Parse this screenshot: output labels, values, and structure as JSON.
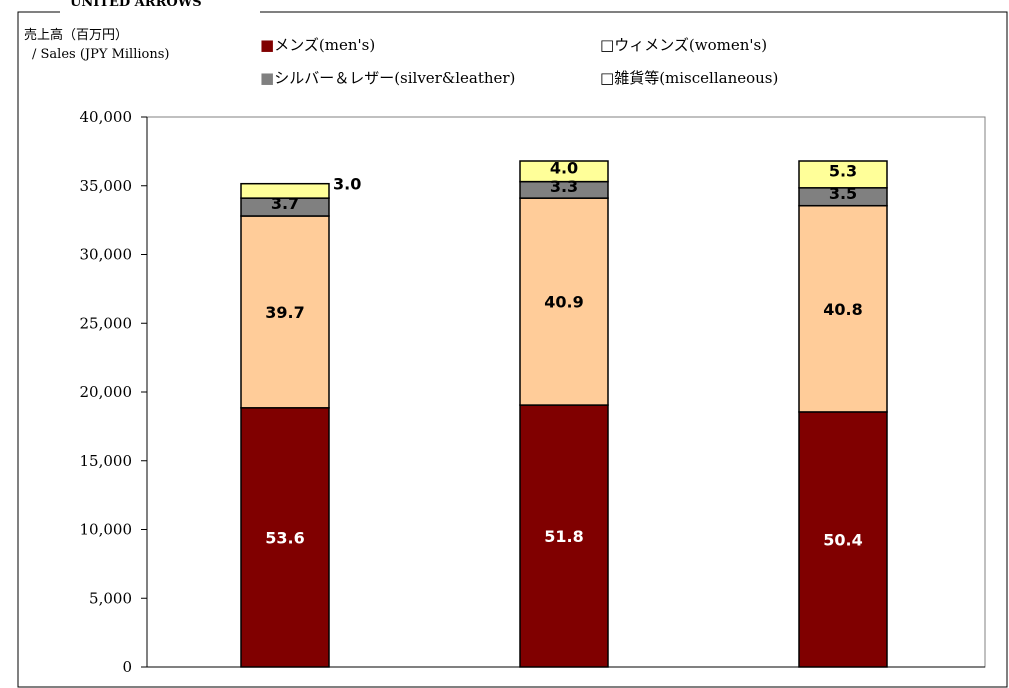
{
  "header": {
    "partial_title": "UNITED ARROWS"
  },
  "chart_data": {
    "type": "bar",
    "stacked": true,
    "ylabel_line1": "売上高（百万円）",
    "ylabel_line2": "/ Sales (JPY Millions)",
    "ylim": [
      0,
      40000
    ],
    "yticks": [
      0,
      5000,
      10000,
      15000,
      20000,
      25000,
      30000,
      35000,
      40000
    ],
    "ytick_labels": [
      "0",
      "5,000",
      "10,000",
      "15,000",
      "20,000",
      "25,000",
      "30,000",
      "35,000",
      "40,000"
    ],
    "categories": [
      "",
      "",
      ""
    ],
    "grid": false,
    "legend_position": "top",
    "series": [
      {
        "name": "■メンズ(men's)",
        "color": "#800000",
        "label_color": "#ffffff",
        "values": [
          18850,
          19050,
          18550
        ],
        "labels": [
          "53.6",
          "51.8",
          "50.4"
        ]
      },
      {
        "name": "□ウィメンズ(women's)",
        "color": "#FFCC99",
        "label_color": "#000000",
        "values": [
          13950,
          15050,
          15000
        ],
        "labels": [
          "39.7",
          "40.9",
          "40.8"
        ]
      },
      {
        "name": "■シルバー＆レザー(silver&leather)",
        "color": "#808080",
        "label_color": "#000000",
        "values": [
          1300,
          1200,
          1300
        ],
        "labels": [
          "3.7",
          "3.3",
          "3.5"
        ]
      },
      {
        "name": "□雑貨等(miscellaneous)",
        "color": "#FFFF99",
        "label_color": "#000000",
        "values": [
          1050,
          1500,
          1950
        ],
        "labels": [
          "3.0",
          "4.0",
          "5.3"
        ]
      }
    ]
  }
}
